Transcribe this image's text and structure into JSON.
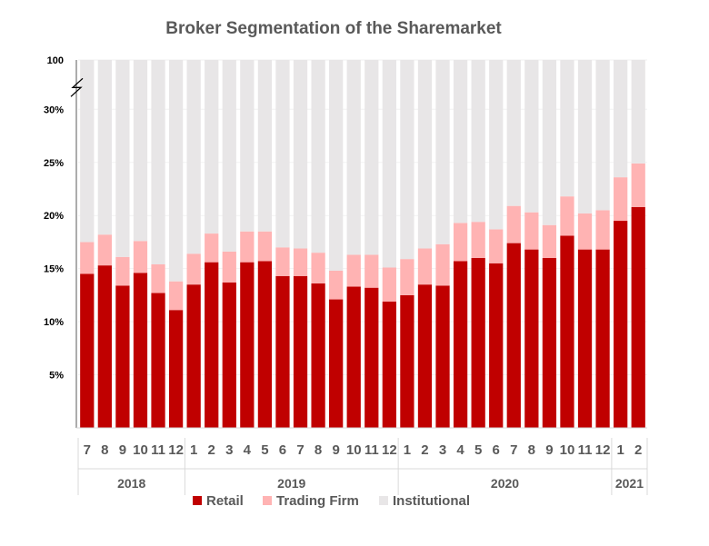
{
  "chart_data": {
    "type": "bar",
    "stacked": true,
    "title": "Broker Segmentation of the Sharemarket",
    "axis_break": true,
    "ylim": [
      0,
      100
    ],
    "yticks": [
      {
        "value": 5,
        "label": "5%"
      },
      {
        "value": 10,
        "label": "10%"
      },
      {
        "value": 15,
        "label": "15%"
      },
      {
        "value": 20,
        "label": "20%"
      },
      {
        "value": 25,
        "label": "25%"
      },
      {
        "value": 30,
        "label": "30%"
      },
      {
        "value": 100,
        "label": "100"
      }
    ],
    "categories": [
      "7",
      "8",
      "9",
      "10",
      "11",
      "12",
      "1",
      "2",
      "3",
      "4",
      "5",
      "6",
      "7",
      "8",
      "9",
      "10",
      "11",
      "12",
      "1",
      "2",
      "3",
      "4",
      "5",
      "6",
      "7",
      "8",
      "9",
      "10",
      "11",
      "12",
      "1",
      "2"
    ],
    "year_groups": [
      {
        "label": "2018",
        "count": 6
      },
      {
        "label": "2019",
        "count": 12
      },
      {
        "label": "2020",
        "count": 12
      },
      {
        "label": "2021",
        "count": 2
      }
    ],
    "series": [
      {
        "name": "Retail",
        "color": "#c00000",
        "values": [
          14.5,
          15.3,
          13.4,
          14.6,
          12.7,
          11.1,
          13.5,
          15.6,
          13.7,
          15.6,
          15.7,
          14.3,
          14.3,
          13.6,
          12.1,
          13.3,
          13.2,
          11.9,
          12.5,
          13.5,
          13.4,
          15.7,
          16.0,
          15.5,
          17.4,
          16.8,
          16.0,
          18.1,
          16.8,
          16.8,
          19.5,
          20.8
        ]
      },
      {
        "name": "Trading Firm",
        "color": "#ffb3b3",
        "values": [
          3.0,
          2.9,
          2.7,
          3.0,
          2.7,
          2.7,
          2.9,
          2.7,
          2.9,
          2.9,
          2.8,
          2.7,
          2.6,
          2.9,
          2.7,
          3.0,
          3.1,
          3.2,
          3.4,
          3.4,
          3.9,
          3.6,
          3.4,
          3.2,
          3.5,
          3.5,
          3.1,
          3.7,
          3.4,
          3.7,
          4.1,
          4.1
        ]
      },
      {
        "name": "Institutional",
        "color": "#e8e6e7",
        "values": [
          82.5,
          81.8,
          83.9,
          82.4,
          84.6,
          86.2,
          83.6,
          81.7,
          83.4,
          81.5,
          81.5,
          83.0,
          83.1,
          83.5,
          85.2,
          83.7,
          83.7,
          84.9,
          84.1,
          83.1,
          82.7,
          80.7,
          80.6,
          81.3,
          79.1,
          79.7,
          80.9,
          78.2,
          79.8,
          79.5,
          76.4,
          75.1
        ]
      }
    ],
    "legend_position": "bottom"
  }
}
